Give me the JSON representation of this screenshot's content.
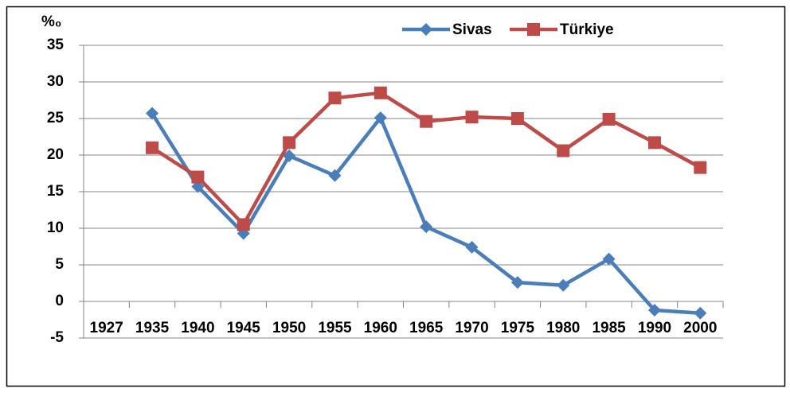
{
  "chart_data": {
    "type": "line",
    "y_label": "%₀",
    "categories": [
      "1927",
      "1935",
      "1940",
      "1945",
      "1950",
      "1955",
      "1960",
      "1965",
      "1970",
      "1975",
      "1980",
      "1985",
      "1990",
      "2000"
    ],
    "series": [
      {
        "name": "Sivas",
        "color": "#4a7ebb",
        "marker": "diamond",
        "values": [
          null,
          25.7,
          15.7,
          9.3,
          19.9,
          17.2,
          25.1,
          10.2,
          7.4,
          2.6,
          2.2,
          5.8,
          -1.2,
          -1.6
        ]
      },
      {
        "name": "Türkiye",
        "color": "#be4b48",
        "marker": "square",
        "values": [
          null,
          21.0,
          17.0,
          10.5,
          21.7,
          27.8,
          28.5,
          24.6,
          25.2,
          25.0,
          20.6,
          24.9,
          21.7,
          18.3
        ]
      }
    ],
    "ylim": [
      -5,
      35
    ],
    "yticks": [
      -5,
      0,
      5,
      10,
      15,
      20,
      25,
      30,
      35
    ],
    "grid": true,
    "legend": "top"
  }
}
